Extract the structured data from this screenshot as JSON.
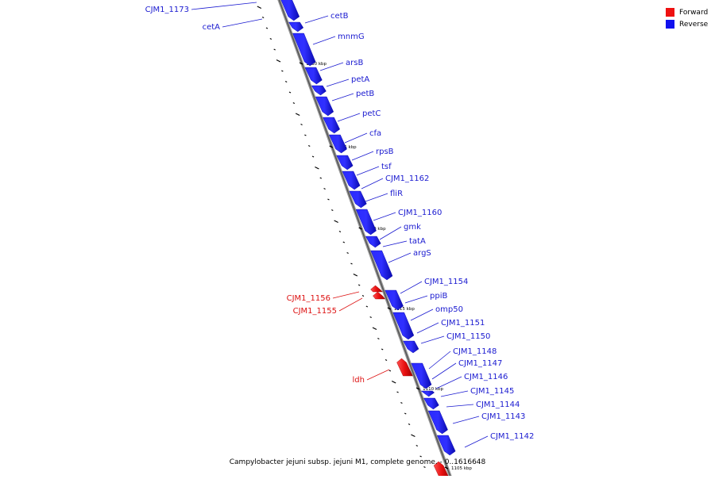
{
  "legend": {
    "forward_label": "Forward",
    "reverse_label": "Reverse",
    "forward_color": "#ee1111",
    "reverse_color": "#1111ee"
  },
  "caption": "Campylobacter jejuni subsp. jejuni M1, complete genome. - 0..1616648",
  "scale_labels": [
    "1130 kbp",
    "1125 kbp",
    "1120 kbp",
    "1115 kbp",
    "1110 kbp",
    "1105 kbp"
  ],
  "genes_reverse": [
    "CJM1_1173",
    "cetA",
    "cetB",
    "mnmG",
    "arsB",
    "petA",
    "petB",
    "petC",
    "cfa",
    "rpsB",
    "tsf",
    "CJM1_1162",
    "fliR",
    "CJM1_1160",
    "gmk",
    "tatA",
    "argS",
    "CJM1_1154",
    "ppiB",
    "omp50",
    "CJM1_1151",
    "CJM1_1150",
    "CJM1_1148",
    "CJM1_1147",
    "CJM1_1146",
    "CJM1_1145",
    "CJM1_1144",
    "CJM1_1143",
    "CJM1_1142"
  ],
  "genes_forward": [
    "CJM1_1156",
    "CJM1_1155",
    "ldh"
  ]
}
